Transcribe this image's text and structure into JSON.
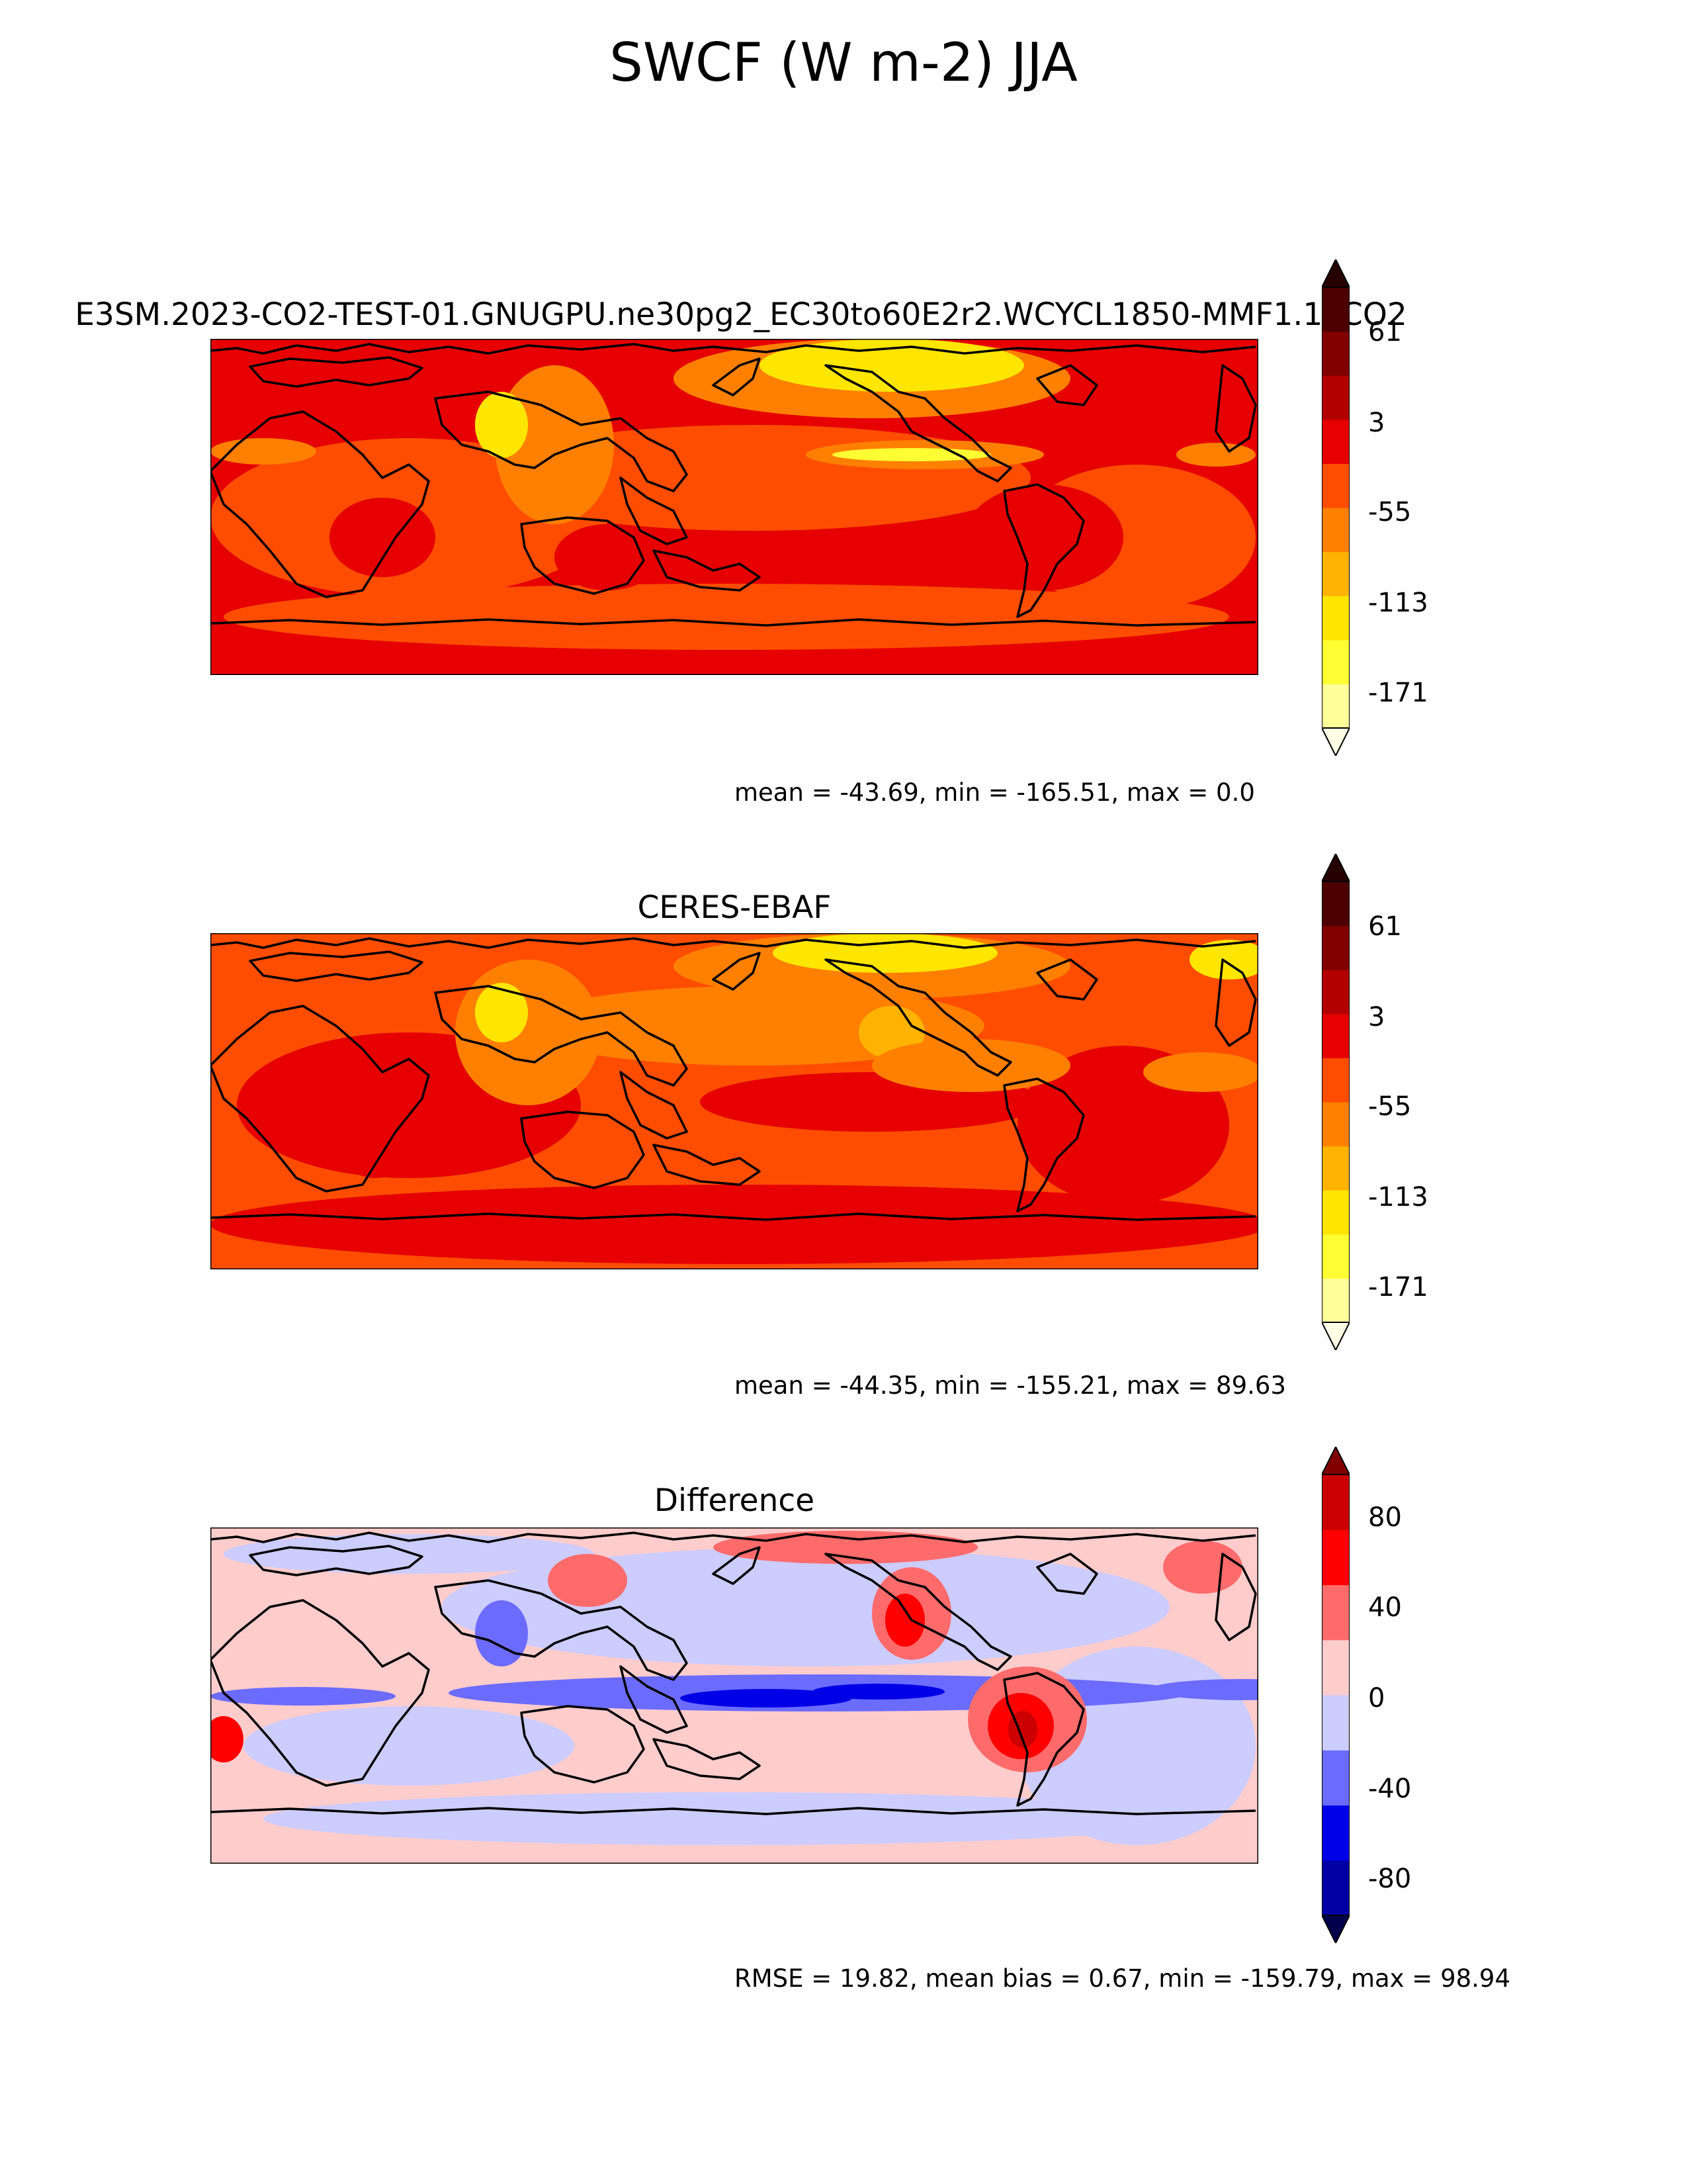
{
  "figure": {
    "title": "SWCF (W m-2) JJA"
  },
  "colors": {
    "test_ref_levels": [
      "#ffffe6",
      "#ffff99",
      "#ffff33",
      "#ffe600",
      "#ffb300",
      "#ff8000",
      "#ff4d00",
      "#e60000",
      "#b30000",
      "#800000",
      "#4d0000",
      "#260000"
    ],
    "diff_levels": [
      "#00004d",
      "#0000a6",
      "#0000e6",
      "#6b6bff",
      "#ccccff",
      "#ffcccc",
      "#ff6b6b",
      "#ff0000",
      "#cc0000",
      "#800000"
    ],
    "coastline": "#000000"
  },
  "panels": [
    {
      "title": "E3SM.2023-CO2-TEST-01.GNUGPU.ne30pg2_EC30to60E2r2.WCYCL1850-MMF1.1xCO2",
      "stats": "mean = -43.69, min = -165.51, max = 0.0"
    },
    {
      "title": "CERES-EBAF",
      "stats": "mean = -44.35, min = -155.21, max = 89.63"
    },
    {
      "title": "Difference",
      "stats": "RMSE = 19.82, mean bias = 0.67, min = -159.79, max = 98.94"
    }
  ],
  "chart_data": [
    {
      "type": "heatmap",
      "title": "E3SM.2023-CO2-TEST-01.GNUGPU.ne30pg2_EC30to60E2r2.WCYCL1850-MMF1.1xCO2",
      "variable": "SWCF (W m-2)",
      "season": "JJA",
      "mean": -43.69,
      "min": -165.51,
      "max": 0.0,
      "colorbar": {
        "ticks": [
          61,
          3,
          -55,
          -113,
          -171
        ],
        "extend": "both"
      }
    },
    {
      "type": "heatmap",
      "title": "CERES-EBAF",
      "variable": "SWCF (W m-2)",
      "season": "JJA",
      "mean": -44.35,
      "min": -155.21,
      "max": 89.63,
      "colorbar": {
        "ticks": [
          61,
          3,
          -55,
          -113,
          -171
        ],
        "extend": "both"
      }
    },
    {
      "type": "heatmap",
      "title": "Difference",
      "variable": "SWCF (W m-2)",
      "season": "JJA",
      "rmse": 19.82,
      "mean_bias": 0.67,
      "min": -159.79,
      "max": 98.94,
      "colorbar": {
        "ticks": [
          80,
          40,
          0,
          -40,
          -80
        ],
        "extend": "both"
      }
    }
  ]
}
